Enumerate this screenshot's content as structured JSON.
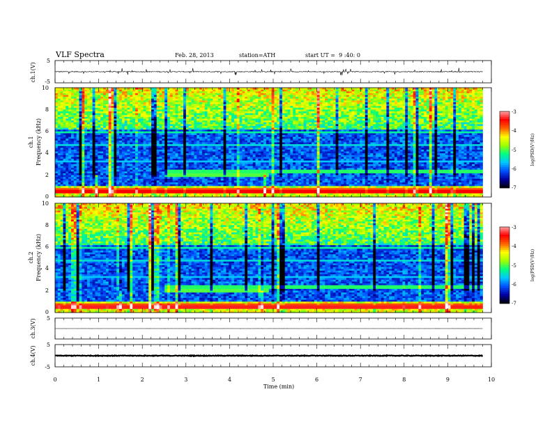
{
  "header": {
    "title": "VLF Spectra",
    "date": "Feb. 28, 2013",
    "station": "station=ATH",
    "start_ut": "start UT =  9 :40: 0"
  },
  "chart_data": {
    "type": "heatmap",
    "xlabel": "Time (min)",
    "xlim": [
      0,
      10
    ],
    "x_ticks": [
      "0",
      "1",
      "2",
      "3",
      "4",
      "5",
      "6",
      "7",
      "8",
      "9",
      "10"
    ],
    "data_end_min": 9.8,
    "panels": [
      {
        "id": "ch1-wave",
        "kind": "waveform",
        "ylabel": "ch.1(V)",
        "ylim": [
          -5,
          5
        ],
        "y_ticks": [
          "5",
          "-5"
        ],
        "level": 0,
        "noise": 0.2,
        "spike": 1.6
      },
      {
        "id": "ch1-spec",
        "kind": "spectrogram",
        "ylabel_top": "ch.1",
        "ylabel": "Frequency (kHz)",
        "ylim": [
          0,
          10
        ],
        "y_ticks": [
          "0",
          "2",
          "4",
          "6",
          "8",
          "10"
        ],
        "colorbar_label": "log(PSD(V²/Hz)",
        "colorbar_range": [
          -7,
          -3
        ],
        "colorbar_ticks": [
          "-3",
          "-4",
          "-5",
          "-6",
          "-7"
        ]
      },
      {
        "id": "ch2-spec",
        "kind": "spectrogram",
        "ylabel_top": "ch.2",
        "ylabel": "Frequency (kHz)",
        "ylim": [
          0,
          10
        ],
        "y_ticks": [
          "0",
          "2",
          "4",
          "6",
          "8",
          "10"
        ],
        "colorbar_label": "log(PSD(V²/Hz)",
        "colorbar_range": [
          -7,
          -3
        ],
        "colorbar_ticks": [
          "-3",
          "-4",
          "-5",
          "-6",
          "-7"
        ]
      },
      {
        "id": "ch3-wave",
        "kind": "waveform",
        "ylabel": "ch.3(V)",
        "ylim": [
          -5,
          5
        ],
        "y_ticks": [
          "5"
        ],
        "level": 0,
        "noise": 0.02,
        "spike": 0
      },
      {
        "id": "ch4-wave",
        "kind": "waveform",
        "ylabel": "ch.4(V)",
        "ylim": [
          -5,
          5
        ],
        "y_ticks": [
          "5",
          "-5"
        ],
        "level": 0,
        "noise": 0.15,
        "spike": 0
      }
    ],
    "colormap": [
      "#000000",
      "#0000a0",
      "#0050ff",
      "#00c8ff",
      "#00ff80",
      "#a0ff00",
      "#ffff00",
      "#ff6000",
      "#ff0000",
      "#ffa0a0",
      "#ffffff"
    ]
  }
}
